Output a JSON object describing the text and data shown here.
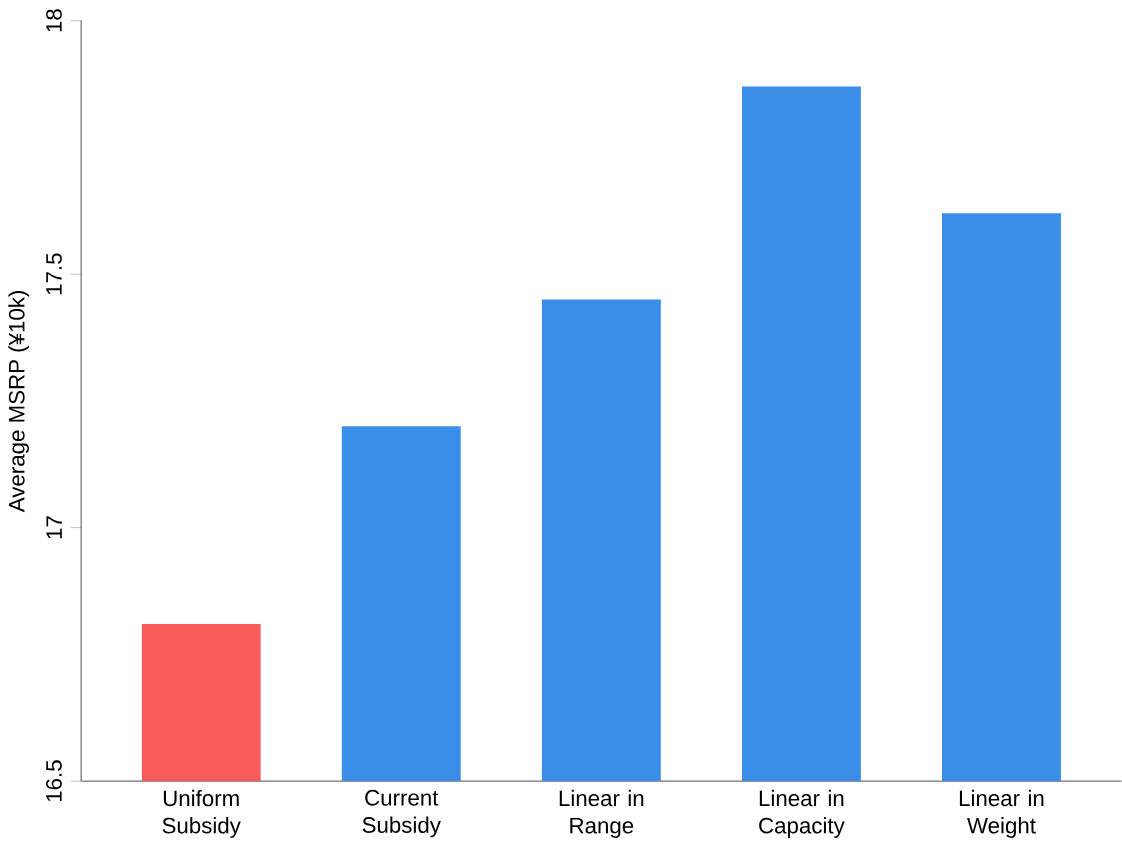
{
  "chart_data": {
    "type": "bar",
    "ylabel": "Average MSRP (¥10k)",
    "categories": [
      "Uniform Subsidy",
      "Current Subsidy",
      "Linear in Range",
      "Linear in Capacity",
      "Linear in Weight"
    ],
    "values": [
      16.81,
      17.2,
      17.45,
      17.87,
      17.62
    ],
    "colors": [
      "#f85a5a",
      "#3a8ee8",
      "#3a8ee8",
      "#3a8ee8",
      "#3a8ee8"
    ],
    "ylim": [
      16.5,
      18
    ],
    "yticks": [
      16.5,
      17,
      17.5,
      18
    ],
    "grid": false
  }
}
